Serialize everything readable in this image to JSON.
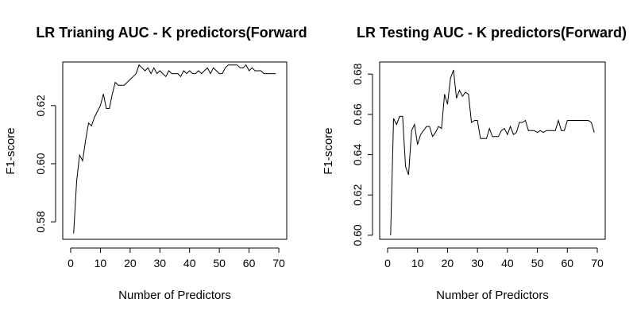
{
  "chart_data": [
    {
      "type": "line",
      "title": "LR Trianing AUC - K predictors(Forward",
      "xlabel": "Number of Predictors",
      "ylabel": "F1-score",
      "xlim": [
        0,
        70
      ],
      "ylim": [
        0.574,
        0.635
      ],
      "xticks": [
        0,
        10,
        20,
        30,
        40,
        50,
        60,
        70
      ],
      "yticks": [
        0.58,
        0.6,
        0.62
      ],
      "ytick_labels": [
        "0.58",
        "0.60",
        "0.62"
      ],
      "grid": false,
      "x": [
        1,
        2,
        3,
        4,
        5,
        6,
        7,
        8,
        9,
        10,
        11,
        12,
        13,
        14,
        15,
        16,
        17,
        18,
        19,
        20,
        21,
        22,
        23,
        24,
        25,
        26,
        27,
        28,
        29,
        30,
        31,
        32,
        33,
        34,
        35,
        36,
        37,
        38,
        39,
        40,
        41,
        42,
        43,
        44,
        45,
        46,
        47,
        48,
        49,
        50,
        51,
        52,
        53,
        54,
        55,
        56,
        57,
        58,
        59,
        60,
        61,
        62,
        63,
        64,
        65,
        66,
        67,
        68,
        69
      ],
      "y": [
        0.576,
        0.594,
        0.603,
        0.601,
        0.608,
        0.614,
        0.613,
        0.616,
        0.618,
        0.62,
        0.624,
        0.619,
        0.619,
        0.624,
        0.628,
        0.627,
        0.627,
        0.627,
        0.628,
        0.629,
        0.63,
        0.631,
        0.634,
        0.633,
        0.632,
        0.633,
        0.631,
        0.633,
        0.631,
        0.632,
        0.631,
        0.63,
        0.632,
        0.631,
        0.631,
        0.631,
        0.63,
        0.632,
        0.631,
        0.632,
        0.631,
        0.631,
        0.632,
        0.631,
        0.632,
        0.633,
        0.631,
        0.633,
        0.632,
        0.631,
        0.631,
        0.633,
        0.634,
        0.634,
        0.634,
        0.634,
        0.633,
        0.633,
        0.634,
        0.632,
        0.633,
        0.632,
        0.632,
        0.632,
        0.631,
        0.631,
        0.631,
        0.631,
        0.631
      ]
    },
    {
      "type": "line",
      "title": "LR Testing AUC - K predictors(Forward)",
      "xlabel": "Number of Predictors",
      "ylabel": "F1-score",
      "xlim": [
        0,
        70
      ],
      "ylim": [
        0.598,
        0.686
      ],
      "xticks": [
        0,
        10,
        20,
        30,
        40,
        50,
        60,
        70
      ],
      "yticks": [
        0.6,
        0.62,
        0.64,
        0.66,
        0.68
      ],
      "ytick_labels": [
        "0.60",
        "0.62",
        "0.64",
        "0.66",
        "0.68"
      ],
      "grid": false,
      "x": [
        1,
        2,
        3,
        4,
        5,
        6,
        7,
        8,
        9,
        10,
        11,
        12,
        13,
        14,
        15,
        16,
        17,
        18,
        19,
        20,
        21,
        22,
        23,
        24,
        25,
        26,
        27,
        28,
        29,
        30,
        31,
        32,
        33,
        34,
        35,
        36,
        37,
        38,
        39,
        40,
        41,
        42,
        43,
        44,
        45,
        46,
        47,
        48,
        49,
        50,
        51,
        52,
        53,
        54,
        55,
        56,
        57,
        58,
        59,
        60,
        61,
        62,
        63,
        64,
        65,
        66,
        67,
        68,
        69
      ],
      "y": [
        0.6,
        0.658,
        0.655,
        0.659,
        0.659,
        0.634,
        0.63,
        0.652,
        0.655,
        0.645,
        0.65,
        0.652,
        0.654,
        0.654,
        0.649,
        0.651,
        0.654,
        0.653,
        0.67,
        0.665,
        0.678,
        0.682,
        0.668,
        0.672,
        0.669,
        0.671,
        0.67,
        0.656,
        0.657,
        0.657,
        0.648,
        0.648,
        0.648,
        0.653,
        0.649,
        0.649,
        0.649,
        0.652,
        0.653,
        0.65,
        0.654,
        0.65,
        0.651,
        0.656,
        0.656,
        0.657,
        0.652,
        0.652,
        0.652,
        0.651,
        0.652,
        0.651,
        0.652,
        0.652,
        0.652,
        0.652,
        0.657,
        0.652,
        0.652,
        0.657,
        0.657,
        0.657,
        0.657,
        0.657,
        0.657,
        0.657,
        0.657,
        0.656,
        0.651
      ]
    }
  ]
}
